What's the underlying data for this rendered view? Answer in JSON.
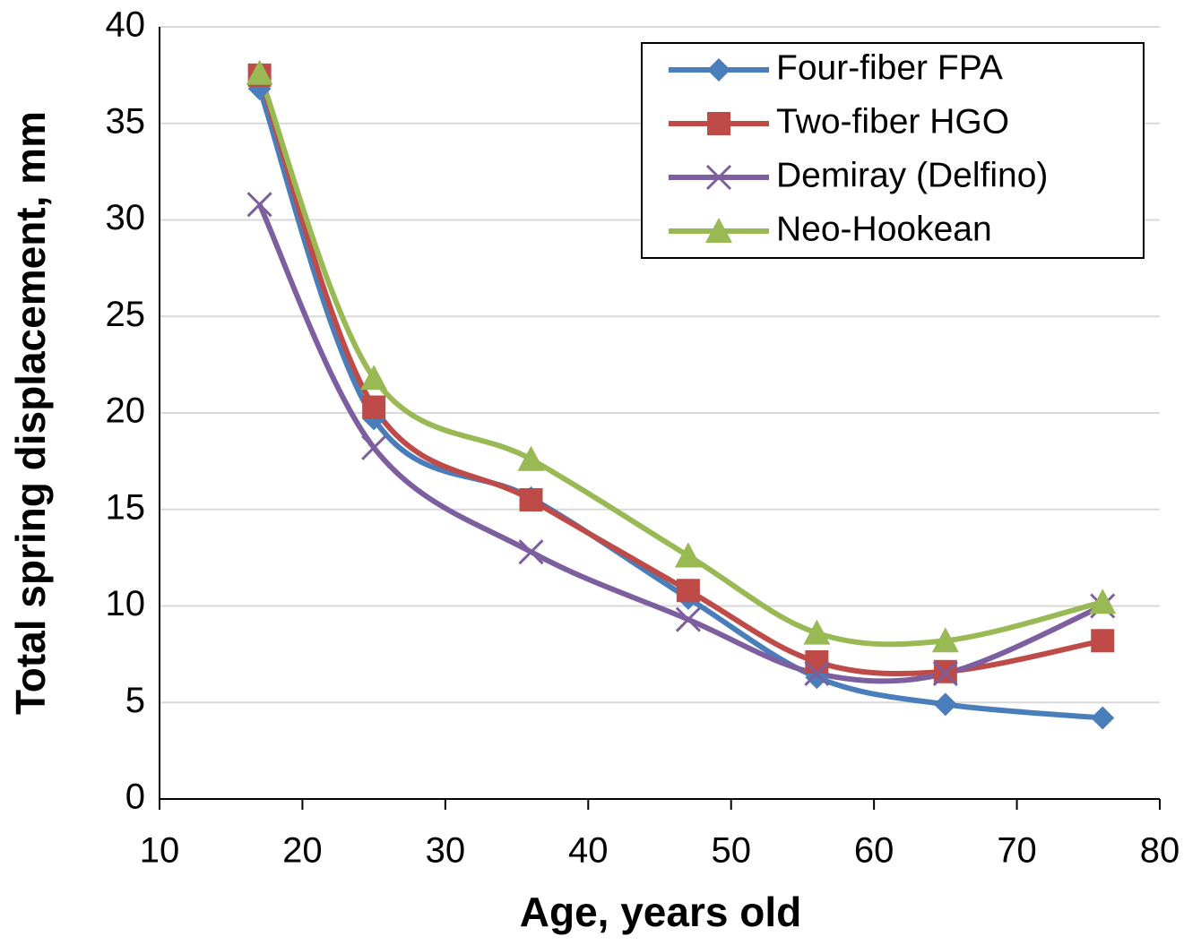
{
  "chart_data": {
    "type": "line",
    "x_label": "Age, years old",
    "y_label": "Total spring displacement, mm",
    "x": [
      17,
      25,
      36,
      47,
      56,
      65,
      76
    ],
    "series": [
      {
        "name": "Four-fiber FPA",
        "color": "#4a7ebb",
        "marker": "diamond",
        "values": [
          36.8,
          19.7,
          15.6,
          10.4,
          6.3,
          4.9,
          4.2
        ]
      },
      {
        "name": "Two-fiber HGO",
        "color": "#be4b48",
        "marker": "square",
        "values": [
          37.5,
          20.3,
          15.5,
          10.8,
          7.1,
          6.6,
          8.2
        ]
      },
      {
        "name": "Demiray (Delfino)",
        "color": "#7d5fa0",
        "marker": "x",
        "values": [
          30.8,
          18.2,
          12.8,
          9.3,
          6.5,
          6.5,
          10.0
        ]
      },
      {
        "name": "Neo-Hookean",
        "color": "#98b954",
        "marker": "triangle",
        "values": [
          37.6,
          21.8,
          17.6,
          12.6,
          8.6,
          8.2,
          10.2
        ]
      }
    ],
    "smooth": true,
    "xlim": [
      10,
      80
    ],
    "xticks": [
      10,
      20,
      30,
      40,
      50,
      60,
      70,
      80
    ],
    "ylim": [
      0,
      40
    ],
    "yticks": [
      0,
      5,
      10,
      15,
      20,
      25,
      30,
      35,
      40
    ],
    "grid": true,
    "legend": "top-right"
  }
}
